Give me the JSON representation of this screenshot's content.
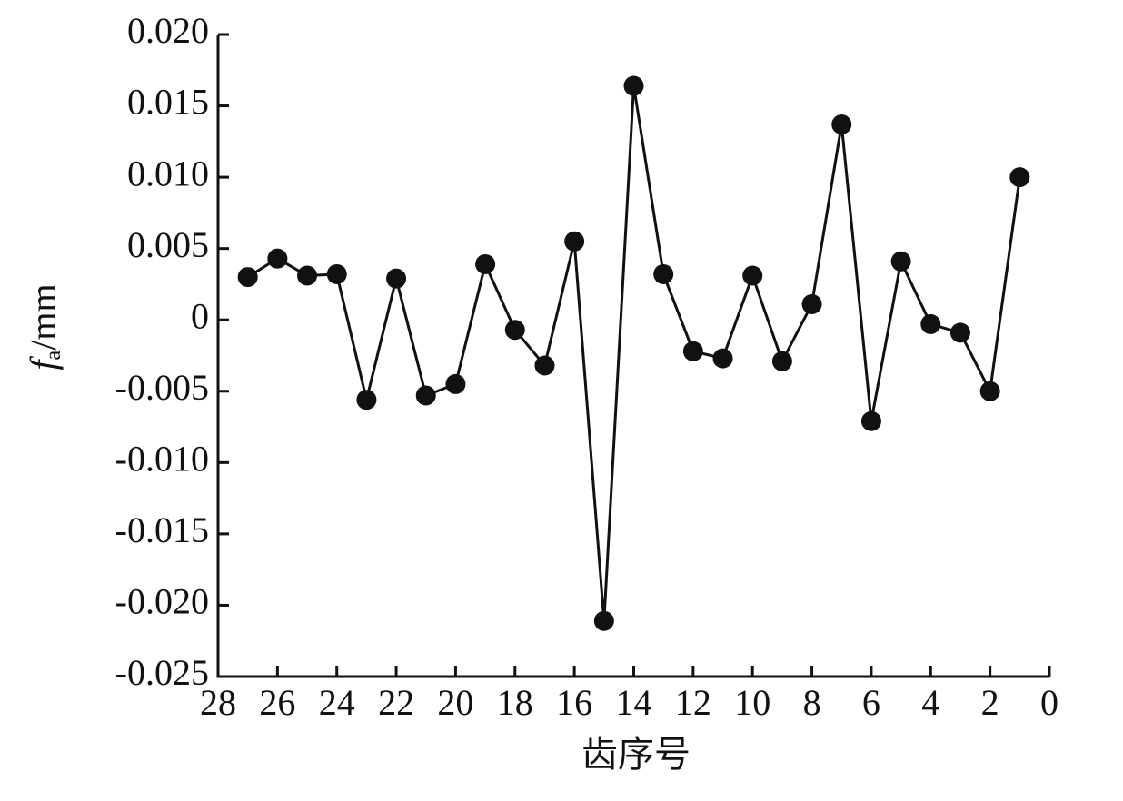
{
  "chart_data": {
    "type": "line",
    "xlabel": "齿序号",
    "ylabel": {
      "symbol": "f",
      "subscript": "a",
      "unit": "/mm"
    },
    "x": [
      27,
      26,
      25,
      24,
      23,
      22,
      21,
      20,
      19,
      18,
      17,
      16,
      15,
      14,
      13,
      12,
      11,
      10,
      9,
      8,
      7,
      6,
      5,
      4,
      3,
      2,
      1
    ],
    "values": [
      0.003,
      0.0043,
      0.0031,
      0.0032,
      -0.0056,
      0.0029,
      -0.0053,
      -0.0045,
      0.0039,
      -0.0007,
      -0.0032,
      0.0055,
      -0.0211,
      0.0164,
      0.0032,
      -0.0022,
      -0.0027,
      0.0031,
      -0.0029,
      0.0011,
      0.0137,
      -0.0071,
      0.0041,
      -0.0003,
      -0.0009,
      -0.005,
      0.01
    ],
    "color": "#111111",
    "xlim": [
      28,
      0
    ],
    "xticks": [
      28,
      26,
      24,
      22,
      20,
      18,
      16,
      14,
      12,
      10,
      8,
      6,
      4,
      2,
      0
    ],
    "ylim": [
      -0.025,
      0.02
    ],
    "yticks": [
      {
        "value": -0.025,
        "label": "-0.025"
      },
      {
        "value": -0.02,
        "label": "-0.020"
      },
      -0.015,
      {
        "value": -0.01,
        "label": "-0.010"
      },
      -0.005,
      0,
      0.005,
      {
        "value": 0.01,
        "label": "0.010"
      },
      0.015,
      {
        "value": 0.02,
        "label": "0.020"
      }
    ],
    "grid": false
  }
}
